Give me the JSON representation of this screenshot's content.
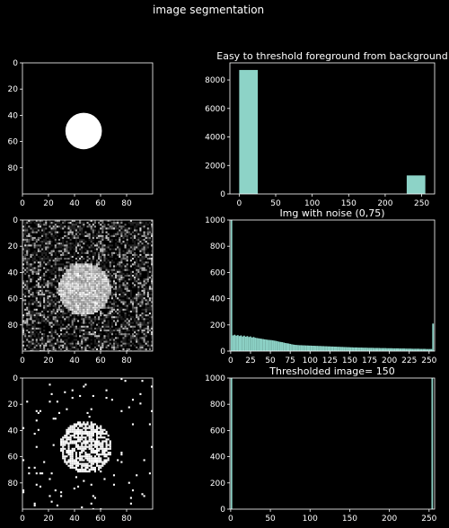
{
  "figure": {
    "title": "image segmentation",
    "background": "#000000",
    "foreground": "#ffffff",
    "bar_color": "#8dd3c7"
  },
  "chart_data": [
    {
      "id": "img_clean",
      "type": "heatmap",
      "colormap": "gray",
      "title": "",
      "xticks": [
        "0",
        "20",
        "40",
        "60",
        "80"
      ],
      "yticks": [
        "0",
        "20",
        "40",
        "60",
        "80"
      ],
      "xlim": [
        0,
        100
      ],
      "ylim": [
        0,
        100
      ],
      "content": {
        "shape": "disk",
        "center": [
          47,
          52
        ],
        "radius": 14,
        "value": 255,
        "noise": "none"
      }
    },
    {
      "id": "hist_clean",
      "type": "bar",
      "title": "Easy to threshold foreground from background",
      "xticks": [
        "0",
        "50",
        "100",
        "150",
        "200",
        "250"
      ],
      "yticks": [
        "0",
        "2000",
        "4000",
        "6000",
        "8000"
      ],
      "xlim": [
        -12.75,
        267.75
      ],
      "ylim": [
        0,
        9200
      ],
      "bins": [
        {
          "x0": 0,
          "x1": 25.5,
          "count": 8700
        },
        {
          "x0": 229.5,
          "x1": 255,
          "count": 1300
        }
      ]
    },
    {
      "id": "img_noisy",
      "type": "heatmap",
      "colormap": "gray",
      "title": "",
      "xticks": [
        "0",
        "20",
        "40",
        "60",
        "80"
      ],
      "yticks": [
        "0",
        "20",
        "40",
        "60",
        "80"
      ],
      "xlim": [
        0,
        100
      ],
      "ylim": [
        0,
        100
      ],
      "content": {
        "shape": "disk",
        "center": [
          47,
          52
        ],
        "radius": 20,
        "value": 255,
        "noise": "random"
      }
    },
    {
      "id": "hist_noisy",
      "type": "bar",
      "title": "Img with noise (0,75)",
      "xticks": [
        "0",
        "25",
        "50",
        "75",
        "100",
        "125",
        "150",
        "175",
        "200",
        "225",
        "250"
      ],
      "yticks": [
        "0",
        "200",
        "400",
        "600",
        "800",
        "1000"
      ],
      "xlim": [
        -1,
        257
      ],
      "ylim": [
        0,
        1000
      ],
      "bins_note": "width-2 bins from 0 to 256",
      "values": [
        1000,
        120,
        125,
        118,
        122,
        115,
        120,
        112,
        118,
        110,
        115,
        108,
        112,
        104,
        108,
        102,
        100,
        98,
        96,
        94,
        92,
        90,
        88,
        86,
        85,
        84,
        82,
        80,
        78,
        75,
        72,
        70,
        68,
        65,
        62,
        60,
        58,
        55,
        52,
        50,
        48,
        47,
        46,
        45,
        45,
        44,
        44,
        43,
        43,
        42,
        42,
        41,
        41,
        40,
        40,
        39,
        39,
        38,
        38,
        37,
        37,
        36,
        36,
        35,
        35,
        34,
        34,
        33,
        33,
        32,
        32,
        31,
        31,
        30,
        30,
        29,
        29,
        28,
        28,
        28,
        27,
        27,
        27,
        26,
        26,
        26,
        25,
        25,
        25,
        25,
        24,
        24,
        24,
        24,
        23,
        23,
        23,
        23,
        22,
        22,
        22,
        22,
        21,
        21,
        21,
        21,
        20,
        20,
        20,
        20,
        19,
        19,
        19,
        19,
        18,
        18,
        18,
        18,
        18,
        17,
        17,
        17,
        17,
        16,
        16,
        16,
        16,
        210
      ]
    },
    {
      "id": "img_thresh",
      "type": "heatmap",
      "colormap": "gray",
      "title": "",
      "xticks": [
        "0",
        "20",
        "40",
        "60",
        "80"
      ],
      "yticks": [
        "0",
        "20",
        "40",
        "60",
        "80"
      ],
      "xlim": [
        0,
        100
      ],
      "ylim": [
        0,
        100
      ],
      "content": {
        "shape": "disk",
        "center": [
          48,
          52
        ],
        "radius": 20,
        "value": 255,
        "noise": "sparse",
        "threshold": 150
      }
    },
    {
      "id": "hist_thresh",
      "type": "bar",
      "title": "Thresholded image= 150",
      "xticks": [
        "0",
        "50",
        "100",
        "150",
        "200",
        "250"
      ],
      "yticks": [
        "0",
        "200",
        "400",
        "600",
        "800",
        "1000"
      ],
      "xlim": [
        -1,
        257
      ],
      "ylim": [
        0,
        1000
      ],
      "bins": [
        {
          "x0": 0,
          "x1": 2,
          "count": 1000
        },
        {
          "x0": 253,
          "x1": 255,
          "count": 1000
        }
      ]
    }
  ]
}
